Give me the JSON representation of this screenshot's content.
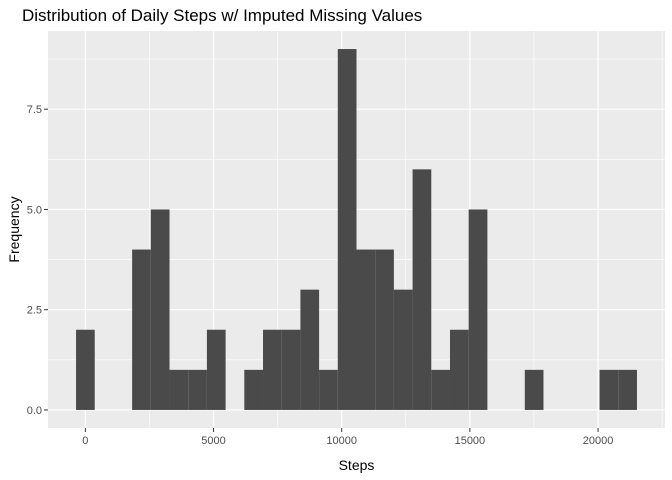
{
  "chart_data": {
    "type": "bar",
    "title": "Distribution of Daily Steps w/ Imputed Missing Values",
    "xlabel": "Steps",
    "ylabel": "Frequency",
    "bin_width": 729.4,
    "bins": [
      {
        "x0": -364,
        "x1": 365,
        "count": 2
      },
      {
        "x0": 365,
        "x1": 1094,
        "count": 0
      },
      {
        "x0": 1094,
        "x1": 1824,
        "count": 0
      },
      {
        "x0": 1824,
        "x1": 2553,
        "count": 4
      },
      {
        "x0": 2553,
        "x1": 3283,
        "count": 5
      },
      {
        "x0": 3283,
        "x1": 4012,
        "count": 1
      },
      {
        "x0": 4012,
        "x1": 4741,
        "count": 1
      },
      {
        "x0": 4741,
        "x1": 5471,
        "count": 2
      },
      {
        "x0": 5471,
        "x1": 6200,
        "count": 0
      },
      {
        "x0": 6200,
        "x1": 6930,
        "count": 1
      },
      {
        "x0": 6930,
        "x1": 7659,
        "count": 2
      },
      {
        "x0": 7659,
        "x1": 8389,
        "count": 2
      },
      {
        "x0": 8389,
        "x1": 9118,
        "count": 3
      },
      {
        "x0": 9118,
        "x1": 9847,
        "count": 1
      },
      {
        "x0": 9847,
        "x1": 10577,
        "count": 9
      },
      {
        "x0": 10577,
        "x1": 11306,
        "count": 4
      },
      {
        "x0": 11306,
        "x1": 12036,
        "count": 4
      },
      {
        "x0": 12036,
        "x1": 12765,
        "count": 3
      },
      {
        "x0": 12765,
        "x1": 13494,
        "count": 6
      },
      {
        "x0": 13494,
        "x1": 14224,
        "count": 1
      },
      {
        "x0": 14224,
        "x1": 14953,
        "count": 2
      },
      {
        "x0": 14953,
        "x1": 15683,
        "count": 5
      },
      {
        "x0": 15683,
        "x1": 16412,
        "count": 0
      },
      {
        "x0": 16412,
        "x1": 17142,
        "count": 0
      },
      {
        "x0": 17142,
        "x1": 17871,
        "count": 1
      },
      {
        "x0": 17871,
        "x1": 18600,
        "count": 0
      },
      {
        "x0": 18600,
        "x1": 19330,
        "count": 0
      },
      {
        "x0": 19330,
        "x1": 20059,
        "count": 0
      },
      {
        "x0": 20059,
        "x1": 20789,
        "count": 1
      },
      {
        "x0": 20789,
        "x1": 21518,
        "count": 1
      }
    ],
    "x_ticks": [
      {
        "value": 0,
        "label": "0"
      },
      {
        "value": 5000,
        "label": "5000"
      },
      {
        "value": 10000,
        "label": "10000"
      },
      {
        "value": 15000,
        "label": "15000"
      },
      {
        "value": 20000,
        "label": "20000"
      }
    ],
    "y_ticks": [
      {
        "value": 0,
        "label": "0.0"
      },
      {
        "value": 2.5,
        "label": "2.5"
      },
      {
        "value": 5,
        "label": "5.0"
      },
      {
        "value": 7.5,
        "label": "7.5"
      }
    ],
    "xlim": [
      -1458,
      22612
    ],
    "ylim": [
      -0.45,
      9.45
    ],
    "grid": true,
    "colors": {
      "panel_background": "#ebebeb",
      "grid_major": "#ffffff",
      "bar_fill": "#4a4a4a",
      "tick_text": "#4d4d4d",
      "tick_mark": "#333333"
    }
  }
}
